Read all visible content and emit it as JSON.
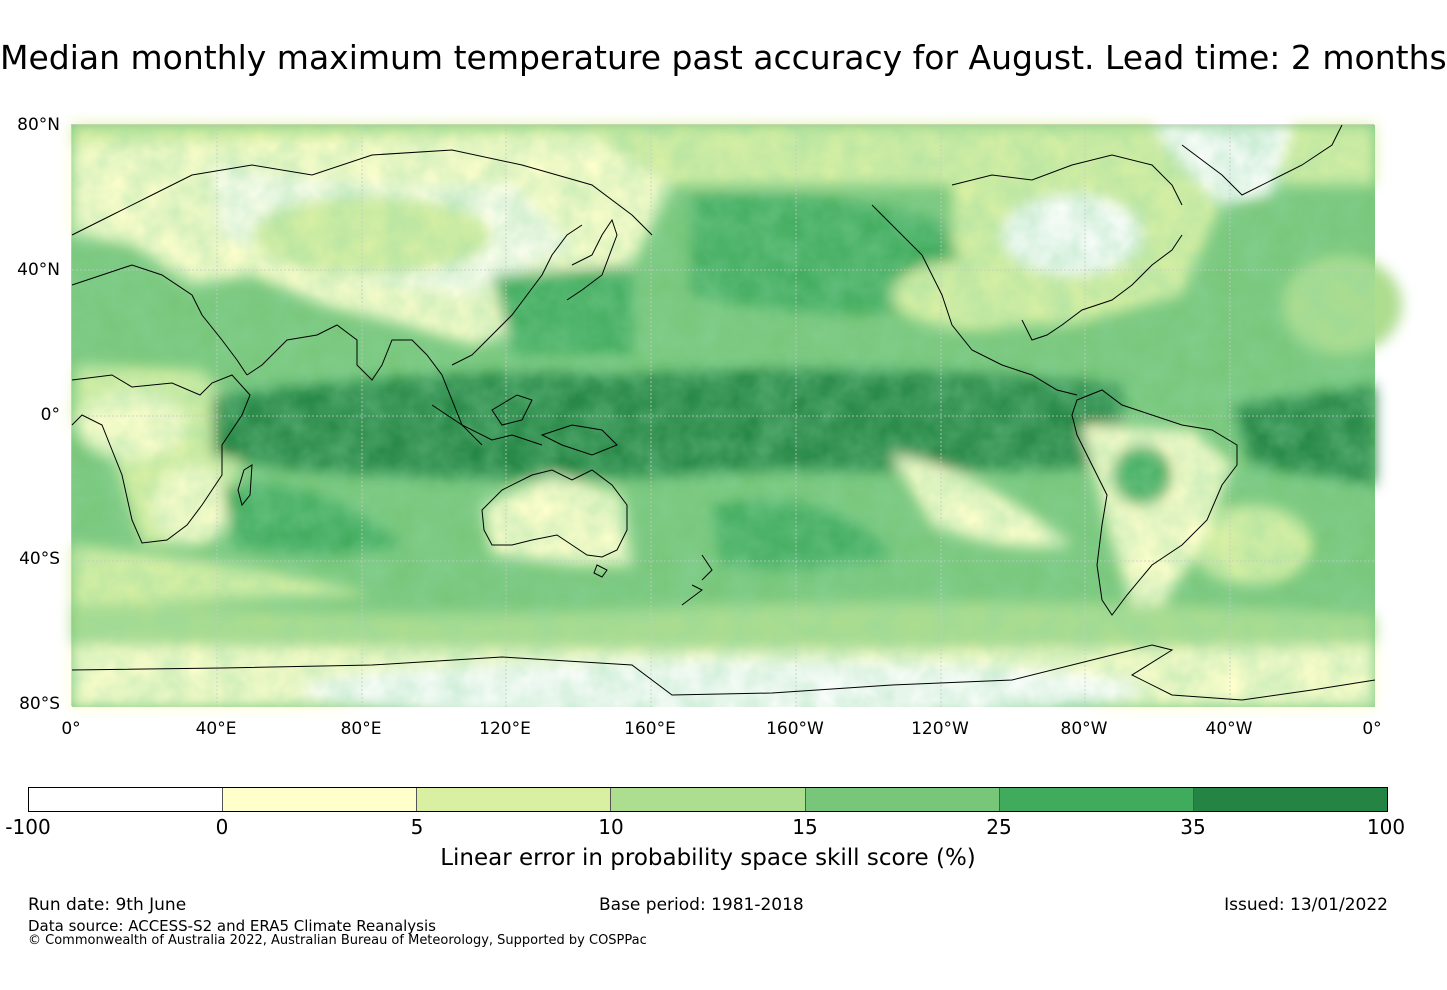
{
  "title": "Median monthly maximum temperature past accuracy for August. Lead time: 2 months",
  "map": {
    "lat_labels": [
      "80°N",
      "40°N",
      "0°",
      "40°S",
      "80°S"
    ],
    "lon_labels": [
      "0°",
      "40°E",
      "80°E",
      "120°E",
      "160°E",
      "160°W",
      "120°W",
      "80°W",
      "40°W",
      "0°"
    ],
    "colors": {
      "ocean_skill_high": "#238443",
      "land_low": "#ffffcc",
      "coastline": "#000000",
      "grid": "#c8c8c8"
    }
  },
  "legend": {
    "ticks": [
      "-100",
      "0",
      "5",
      "10",
      "15",
      "25",
      "35",
      "100"
    ],
    "colors": [
      "#ffffff",
      "#ffffcc",
      "#d9f0a3",
      "#addd8e",
      "#78c679",
      "#41ab5d",
      "#238443"
    ],
    "label": "Linear error in probability space skill score (%)"
  },
  "footer": {
    "run_date": "Run date: 9th June",
    "base_period": "Base period: 1981-2018",
    "issued": "Issued: 13/01/2022",
    "data_source": "Data source: ACCESS-S2 and ERA5 Climate Reanalysis",
    "copyright": "© Commonwealth of Australia 2022, Australian Bureau of Meteorology, Supported by COSPPac"
  }
}
